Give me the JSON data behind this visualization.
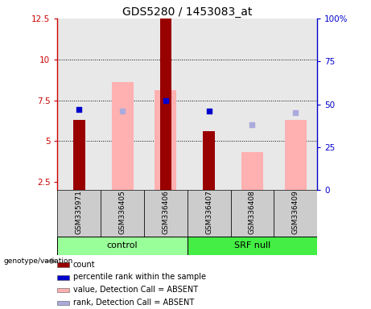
{
  "title": "GDS5280 / 1453083_at",
  "samples": [
    "GSM335971",
    "GSM336405",
    "GSM336406",
    "GSM336407",
    "GSM336408",
    "GSM336409"
  ],
  "left_ylim": [
    2.0,
    12.5
  ],
  "right_ylim": [
    0,
    100
  ],
  "left_yticks": [
    2.5,
    5.0,
    7.5,
    10.0,
    12.5
  ],
  "right_yticks": [
    0,
    25,
    50,
    75,
    100
  ],
  "right_yticklabels": [
    "0",
    "25",
    "50",
    "75",
    "100%"
  ],
  "red_bars": [
    6.3,
    null,
    12.5,
    5.6,
    null,
    null
  ],
  "blue_squares": [
    47.0,
    null,
    52.0,
    46.0,
    null,
    null
  ],
  "pink_bars": [
    null,
    8.6,
    8.1,
    null,
    4.3,
    6.3
  ],
  "lightblue_squares": [
    null,
    46.0,
    null,
    null,
    38.0,
    45.0
  ],
  "bar_width": 0.5,
  "red_bar_color": "#990000",
  "blue_sq_color": "#0000cc",
  "pink_bar_color": "#ffb0b0",
  "lightblue_sq_color": "#aaaadd",
  "ctrl_color": "#99ff99",
  "srf_color": "#44ee44",
  "left_axis_color": "#cc0000",
  "right_axis_color": "#0000cc",
  "plot_bg_color": "#e8e8e8",
  "legend_items": [
    {
      "label": "count",
      "color": "#990000"
    },
    {
      "label": "percentile rank within the sample",
      "color": "#0000cc"
    },
    {
      "label": "value, Detection Call = ABSENT",
      "color": "#ffb0b0"
    },
    {
      "label": "rank, Detection Call = ABSENT",
      "color": "#aaaadd"
    }
  ],
  "grid_yticks": [
    5.0,
    7.5,
    10.0
  ],
  "left_ytick_labels": [
    "2.5",
    "5",
    "7.5",
    "10",
    "12.5"
  ]
}
